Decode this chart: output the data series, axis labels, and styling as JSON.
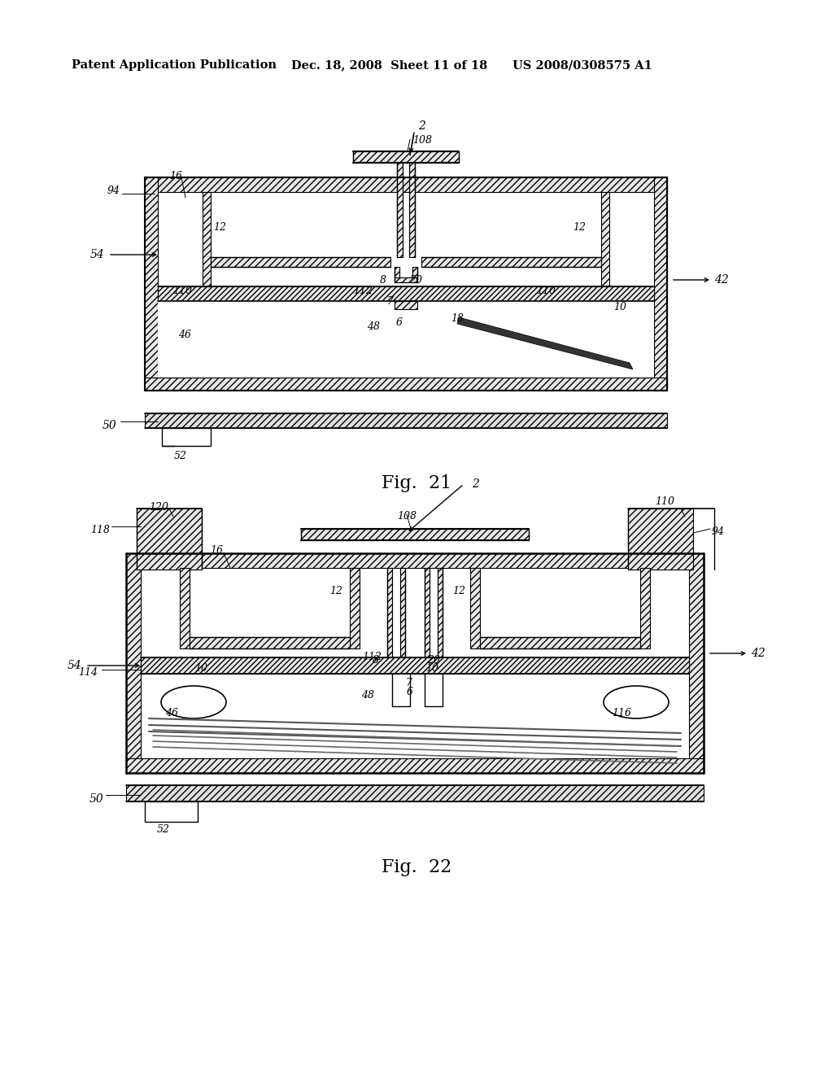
{
  "background_color": "#ffffff",
  "header_left": "Patent Application Publication",
  "header_mid": "Dec. 18, 2008  Sheet 11 of 18",
  "header_right": "US 2008/0308575 A1",
  "fig21_label": "Fig.  21",
  "fig22_label": "Fig.  22"
}
